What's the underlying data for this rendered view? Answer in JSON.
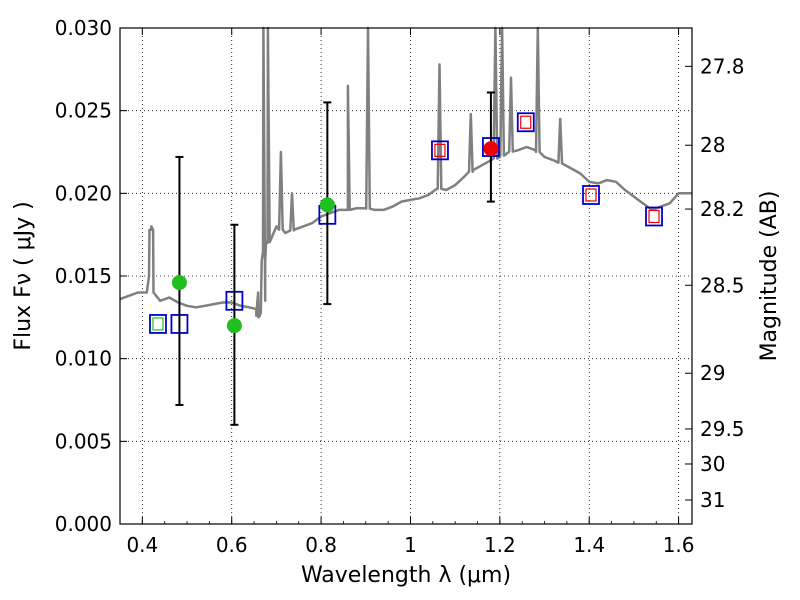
{
  "chart_data": {
    "type": "scatter",
    "title": "",
    "xlabel": "Wavelength  λ (μm)",
    "ylabel": "Flux  Fν  ( μJy )",
    "ylabel_right": "Magnitude (AB)",
    "xlim": [
      0.35,
      1.63
    ],
    "ylim": [
      0.0,
      0.03
    ],
    "grid": true,
    "grid_style": "dotted",
    "x_ticks": [
      0.4,
      0.6,
      0.8,
      1.0,
      1.2,
      1.4,
      1.6
    ],
    "x_tick_labels": [
      "0.4",
      "0.6",
      "0.8",
      "1",
      "1.2",
      "1.4",
      "1.6"
    ],
    "y_ticks": [
      0.0,
      0.005,
      0.01,
      0.015,
      0.02,
      0.025,
      0.03
    ],
    "y_tick_labels": [
      "0.000",
      "0.005",
      "0.010",
      "0.015",
      "0.020",
      "0.025",
      "0.030"
    ],
    "mag_ticks": [
      {
        "label": "27.8",
        "flux": 0.02768
      },
      {
        "label": "28",
        "flux": 0.02291
      },
      {
        "label": "28.2",
        "flux": 0.01905
      },
      {
        "label": "28.5",
        "flux": 0.01444
      },
      {
        "label": "29",
        "flux": 0.00912
      },
      {
        "label": "29.5",
        "flux": 0.00575
      },
      {
        "label": "30",
        "flux": 0.00363
      },
      {
        "label": "31",
        "flux": 0.00145
      }
    ],
    "colors": {
      "spectrum": "#808080",
      "green_point": "#1fbf1f",
      "red_point": "#ee0000",
      "model_box": "#0000cc",
      "inner_green": "#1fbf1f",
      "inner_red": "#ee0000",
      "errorbar": "#000000"
    },
    "spectrum": {
      "name": "template SED",
      "x": [
        0.35,
        0.37,
        0.39,
        0.41,
        0.415,
        0.42,
        0.425,
        0.44,
        0.46,
        0.48,
        0.5,
        0.52,
        0.54,
        0.56,
        0.58,
        0.6,
        0.62,
        0.64,
        0.655,
        0.66,
        0.665,
        0.67,
        0.675,
        0.68,
        0.7,
        0.72,
        0.74,
        0.76,
        0.78,
        0.8,
        0.82,
        0.84,
        0.86,
        0.88,
        0.9,
        0.92,
        0.94,
        0.96,
        0.98,
        1.0,
        1.02,
        1.04,
        1.06,
        1.08,
        1.1,
        1.12,
        1.14,
        1.16,
        1.18,
        1.2,
        1.22,
        1.24,
        1.26,
        1.28,
        1.3,
        1.32,
        1.34,
        1.36,
        1.38,
        1.4,
        1.42,
        1.44,
        1.46,
        1.48,
        1.5,
        1.52,
        1.54,
        1.56,
        1.58,
        1.6,
        1.63
      ],
      "y": [
        0.0136,
        0.0138,
        0.014,
        0.014,
        0.015,
        0.0178,
        0.014,
        0.0135,
        0.0137,
        0.0134,
        0.0132,
        0.0131,
        0.0132,
        0.0133,
        0.0134,
        0.0134,
        0.0132,
        0.0131,
        0.013,
        0.0125,
        0.0128,
        0.0165,
        0.0135,
        0.017,
        0.018,
        0.0176,
        0.0178,
        0.018,
        0.0182,
        0.0186,
        0.0188,
        0.019,
        0.019,
        0.0191,
        0.0191,
        0.019,
        0.019,
        0.0192,
        0.0195,
        0.0196,
        0.0197,
        0.0199,
        0.0203,
        0.0202,
        0.0205,
        0.021,
        0.0214,
        0.0217,
        0.022,
        0.0222,
        0.0225,
        0.0226,
        0.0228,
        0.0226,
        0.0222,
        0.022,
        0.0218,
        0.0215,
        0.0212,
        0.0207,
        0.0206,
        0.0208,
        0.0207,
        0.0202,
        0.0198,
        0.0194,
        0.019,
        0.0192,
        0.0194,
        0.02,
        0.02
      ]
    },
    "emission_lines": [
      {
        "x": 0.42,
        "peak": 0.018
      },
      {
        "x": 0.659,
        "peak": 0.014
      },
      {
        "x": 0.671,
        "peak": 0.031
      },
      {
        "x": 0.681,
        "peak": 0.031
      },
      {
        "x": 0.71,
        "peak": 0.0225
      },
      {
        "x": 0.735,
        "peak": 0.02
      },
      {
        "x": 0.86,
        "peak": 0.0265
      },
      {
        "x": 0.905,
        "peak": 0.031
      },
      {
        "x": 1.065,
        "peak": 0.0278
      },
      {
        "x": 1.135,
        "peak": 0.0248
      },
      {
        "x": 1.19,
        "peak": 0.031
      },
      {
        "x": 1.205,
        "peak": 0.031
      },
      {
        "x": 1.225,
        "peak": 0.027
      },
      {
        "x": 1.285,
        "peak": 0.031
      },
      {
        "x": 1.335,
        "peak": 0.0245
      }
    ],
    "observed_points": [
      {
        "name": "green detection",
        "x": 0.483,
        "y": 0.0146,
        "yerr_low": 0.0072,
        "yerr_high": 0.0222,
        "color": "green"
      },
      {
        "name": "green detection",
        "x": 0.606,
        "y": 0.012,
        "yerr_low": 0.006,
        "yerr_high": 0.0181,
        "color": "green"
      },
      {
        "name": "green detection",
        "x": 0.814,
        "y": 0.0193,
        "yerr_low": 0.0133,
        "yerr_high": 0.0255,
        "color": "green"
      },
      {
        "name": "red detection",
        "x": 1.18,
        "y": 0.0227,
        "yerr_low": 0.0195,
        "yerr_high": 0.0261,
        "color": "red"
      }
    ],
    "model_boxes": [
      {
        "x": 0.435,
        "y": 0.0121,
        "inner": "green"
      },
      {
        "x": 0.483,
        "y": 0.0121,
        "inner": "none"
      },
      {
        "x": 0.606,
        "y": 0.0135,
        "inner": "none"
      },
      {
        "x": 0.814,
        "y": 0.0187,
        "inner": "none"
      },
      {
        "x": 1.066,
        "y": 0.0226,
        "inner": "red"
      },
      {
        "x": 1.18,
        "y": 0.0228,
        "inner": "none"
      },
      {
        "x": 1.258,
        "y": 0.0243,
        "inner": "red"
      },
      {
        "x": 1.404,
        "y": 0.0199,
        "inner": "red"
      },
      {
        "x": 1.545,
        "y": 0.0186,
        "inner": "red"
      }
    ]
  }
}
